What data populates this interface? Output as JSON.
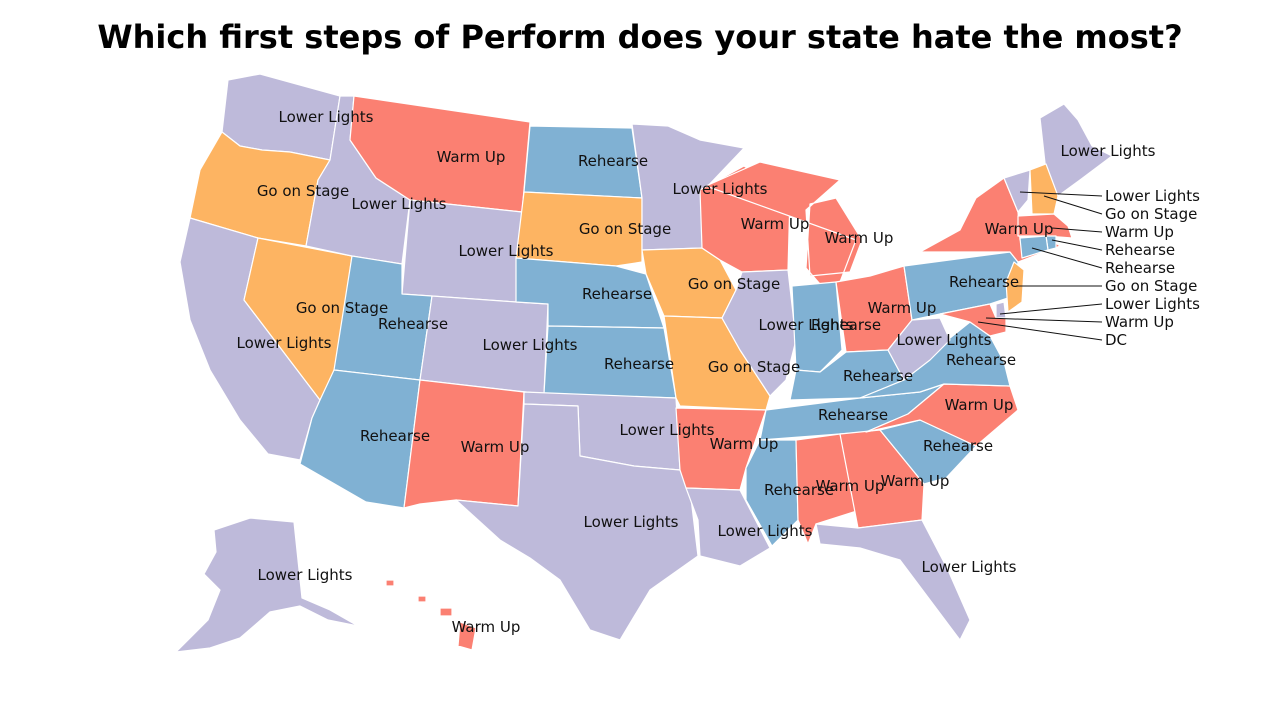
{
  "title": "Which first steps of Perform does your state hate the most?",
  "category_colors": {
    "Lower Lights": "#bebada",
    "Warm Up": "#fb8072",
    "Rehearse": "#80b1d3",
    "Go on Stage": "#fdb462"
  },
  "states": [
    {
      "id": "washington",
      "label": "Lower Lights"
    },
    {
      "id": "oregon",
      "label": "Go on Stage"
    },
    {
      "id": "california",
      "label": "Lower Lights"
    },
    {
      "id": "nevada",
      "label": "Go on Stage"
    },
    {
      "id": "idaho",
      "label": "Lower Lights"
    },
    {
      "id": "montana",
      "label": "Warm Up"
    },
    {
      "id": "wyoming",
      "label": "Lower Lights"
    },
    {
      "id": "utah",
      "label": "Rehearse"
    },
    {
      "id": "arizona",
      "label": "Rehearse"
    },
    {
      "id": "colorado",
      "label": "Lower Lights"
    },
    {
      "id": "new-mexico",
      "label": "Warm Up"
    },
    {
      "id": "north-dakota",
      "label": "Rehearse"
    },
    {
      "id": "south-dakota",
      "label": "Go on Stage"
    },
    {
      "id": "nebraska",
      "label": "Rehearse"
    },
    {
      "id": "kansas",
      "label": "Rehearse"
    },
    {
      "id": "oklahoma",
      "label": "Lower Lights"
    },
    {
      "id": "texas",
      "label": "Lower Lights"
    },
    {
      "id": "minnesota",
      "label": "Lower Lights"
    },
    {
      "id": "iowa",
      "label": "Go on Stage"
    },
    {
      "id": "missouri",
      "label": "Go on Stage"
    },
    {
      "id": "arkansas",
      "label": "Warm Up"
    },
    {
      "id": "louisiana",
      "label": "Lower Lights"
    },
    {
      "id": "wisconsin",
      "label": "Warm Up"
    },
    {
      "id": "illinois",
      "label": "Lower Lights"
    },
    {
      "id": "michigan",
      "label": "Warm Up"
    },
    {
      "id": "indiana",
      "label": "Rehearse"
    },
    {
      "id": "ohio",
      "label": "Warm Up"
    },
    {
      "id": "kentucky",
      "label": "Rehearse"
    },
    {
      "id": "tennessee",
      "label": "Rehearse"
    },
    {
      "id": "mississippi",
      "label": "Rehearse"
    },
    {
      "id": "alabama",
      "label": "Warm Up"
    },
    {
      "id": "georgia",
      "label": "Warm Up"
    },
    {
      "id": "florida",
      "label": "Lower Lights"
    },
    {
      "id": "south-carolina",
      "label": "Rehearse"
    },
    {
      "id": "north-carolina",
      "label": "Warm Up"
    },
    {
      "id": "virginia",
      "label": "Rehearse"
    },
    {
      "id": "west-virginia",
      "label": "Lower Lights"
    },
    {
      "id": "pennsylvania",
      "label": "Rehearse"
    },
    {
      "id": "new-york",
      "label": "Warm Up"
    },
    {
      "id": "maine",
      "label": "Lower Lights"
    },
    {
      "id": "alaska",
      "label": "Lower Lights"
    },
    {
      "id": "hawaii",
      "label": "Warm Up"
    }
  ],
  "callouts": [
    {
      "id": "vermont",
      "label": "Lower Lights"
    },
    {
      "id": "new-hampshire",
      "label": "Go on Stage"
    },
    {
      "id": "massachusetts",
      "label": "Warm Up"
    },
    {
      "id": "rhode-island",
      "label": "Rehearse"
    },
    {
      "id": "connecticut",
      "label": "Rehearse"
    },
    {
      "id": "new-jersey",
      "label": "Go on Stage"
    },
    {
      "id": "delaware",
      "label": "Lower Lights"
    },
    {
      "id": "maryland",
      "label": "Warm Up"
    },
    {
      "id": "dc",
      "label": "DC"
    }
  ]
}
